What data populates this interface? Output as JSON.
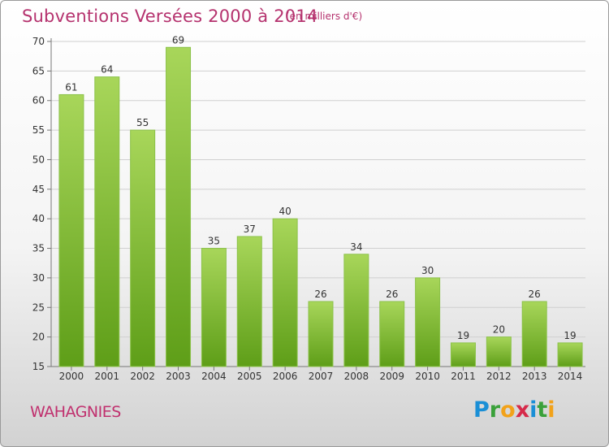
{
  "header": {
    "title": "Subventions Versées 2000 à 2014",
    "unit_note": "(en milliers d'€)"
  },
  "footer": {
    "commune": "WAHAGNIES",
    "logo_text": "Proxiti",
    "logo_icon": "proxiti-logo-icon"
  },
  "colors": {
    "title": "#b5326e",
    "bar_light": "#a8d65a",
    "bar_dark": "#5e9e18",
    "grid": "#d0d0d0"
  },
  "chart_data": {
    "type": "bar",
    "title": "Subventions Versées 2000 à 2014",
    "subtitle": "(en milliers d'€)",
    "xlabel": "",
    "ylabel": "",
    "categories": [
      "2000",
      "2001",
      "2002",
      "2003",
      "2004",
      "2005",
      "2006",
      "2007",
      "2008",
      "2009",
      "2010",
      "2011",
      "2012",
      "2013",
      "2014"
    ],
    "values": [
      61,
      64,
      55,
      69,
      35,
      37,
      40,
      26,
      34,
      26,
      30,
      19,
      20,
      26,
      19
    ],
    "ylim": [
      15,
      70
    ],
    "yticks": [
      15,
      20,
      25,
      30,
      35,
      40,
      45,
      50,
      55,
      60,
      65,
      70
    ],
    "grid": true,
    "data_labels": true,
    "legend": "none"
  }
}
